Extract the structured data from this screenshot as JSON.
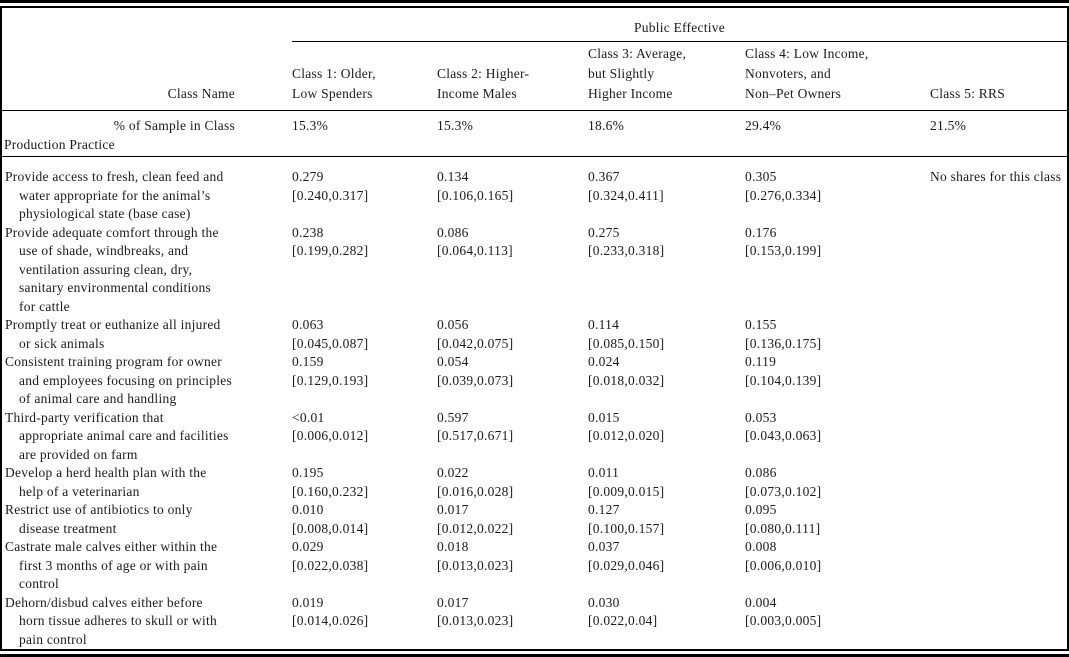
{
  "table": {
    "span_header": "Public Effective",
    "class_name_label": "Class Name",
    "class_headers": [
      "Class 1: Older,\nLow Spenders",
      "Class 2: Higher-\nIncome Males",
      "Class 3: Average,\nbut Slightly\nHigher Income",
      "Class 4: Low Income,\nNonvoters, and\nNon–Pet Owners",
      "Class 5: RRS"
    ],
    "sample_row": {
      "label": "% of Sample in Class",
      "values": [
        "15.3%",
        "15.3%",
        "18.6%",
        "29.4%",
        "21.5%"
      ]
    },
    "section_label": "Production Practice",
    "rows": [
      {
        "label": "Provide access to fresh, clean feed and\nwater appropriate for the animal’s\nphysiological state (base case)",
        "values": [
          "0.279\n[0.240,0.317]",
          "0.134\n[0.106,0.165]",
          "0.367\n[0.324,0.411]",
          "0.305\n[0.276,0.334]",
          "No shares for this class"
        ]
      },
      {
        "label": "Provide adequate comfort through the\nuse of shade, windbreaks, and\nventilation assuring clean, dry,\nsanitary environmental conditions\nfor cattle",
        "values": [
          "0.238\n[0.199,0.282]",
          "0.086\n[0.064,0.113]",
          "0.275\n[0.233,0.318]",
          "0.176\n[0.153,0.199]",
          ""
        ]
      },
      {
        "label": "Promptly treat or euthanize all injured\nor sick animals",
        "values": [
          "0.063\n[0.045,0.087]",
          "0.056\n[0.042,0.075]",
          "0.114\n[0.085,0.150]",
          "0.155\n[0.136,0.175]",
          ""
        ]
      },
      {
        "label": "Consistent training program for owner\nand employees focusing on principles\nof animal care and handling",
        "values": [
          "0.159\n[0.129,0.193]",
          "0.054\n[0.039,0.073]",
          "0.024\n[0.018,0.032]",
          "0.119\n[0.104,0.139]",
          ""
        ]
      },
      {
        "label": "Third-party verification that\nappropriate animal care and facilities\nare provided on farm",
        "values": [
          "<0.01\n[0.006,0.012]",
          "0.597\n[0.517,0.671]",
          "0.015\n[0.012,0.020]",
          "0.053\n[0.043,0.063]",
          ""
        ]
      },
      {
        "label": "Develop a herd health plan with the\nhelp of a veterinarian",
        "values": [
          "0.195\n[0.160,0.232]",
          "0.022\n[0.016,0.028]",
          "0.011\n[0.009,0.015]",
          "0.086\n[0.073,0.102]",
          ""
        ]
      },
      {
        "label": "Restrict use of antibiotics to only\ndisease treatment",
        "values": [
          "0.010\n[0.008,0.014]",
          "0.017\n[0.012,0.022]",
          "0.127\n[0.100,0.157]",
          "0.095\n[0.080,0.111]",
          ""
        ]
      },
      {
        "label": "Castrate male calves either within the\nfirst 3 months of age or with pain\ncontrol",
        "values": [
          "0.029\n[0.022,0.038]",
          "0.018\n[0.013,0.023]",
          "0.037\n[0.029,0.046]",
          "0.008\n[0.006,0.010]",
          ""
        ]
      },
      {
        "label": "Dehorn/disbud calves either before\nhorn tissue adheres to skull or with\npain control",
        "values": [
          "0.019\n[0.014,0.026]",
          "0.017\n[0.013,0.023]",
          "0.030\n[0.022,0.04]",
          "0.004\n[0.003,0.005]",
          ""
        ]
      }
    ]
  }
}
